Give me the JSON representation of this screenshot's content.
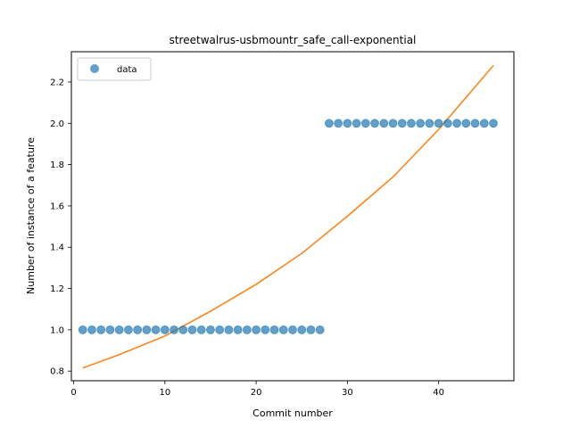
{
  "chart_data": {
    "type": "scatter",
    "title": "streetwalrus-usbmountr_safe_call-exponential",
    "xlabel": "Commit number",
    "ylabel": "Number of instance of a feature",
    "xlim": [
      -0.25,
      48.25
    ],
    "ylim": [
      0.7534,
      2.3466
    ],
    "xticks": [
      0,
      10,
      20,
      30,
      40
    ],
    "yticks": [
      0.8,
      1.0,
      1.2,
      1.4,
      1.6,
      1.8,
      2.0,
      2.2
    ],
    "ytick_labels": [
      "0.8",
      "1.0",
      "1.2",
      "1.4",
      "1.6",
      "1.8",
      "2.0",
      "2.2"
    ],
    "grid": false,
    "legend": {
      "placement": "top-left",
      "entries": [
        "data"
      ]
    },
    "series": [
      {
        "name": "data",
        "kind": "scatter",
        "color": "#1f77b4",
        "x": [
          1,
          2,
          3,
          4,
          5,
          6,
          7,
          8,
          9,
          10,
          11,
          12,
          13,
          14,
          15,
          16,
          17,
          18,
          19,
          20,
          21,
          22,
          23,
          24,
          25,
          26,
          27,
          28,
          29,
          30,
          31,
          32,
          33,
          34,
          35,
          36,
          37,
          38,
          39,
          40,
          41,
          42,
          43,
          44,
          45,
          46
        ],
        "y": [
          1,
          1,
          1,
          1,
          1,
          1,
          1,
          1,
          1,
          1,
          1,
          1,
          1,
          1,
          1,
          1,
          1,
          1,
          1,
          1,
          1,
          1,
          1,
          1,
          1,
          1,
          1,
          2,
          2,
          2,
          2,
          2,
          2,
          2,
          2,
          2,
          2,
          2,
          2,
          2,
          2,
          2,
          2,
          2,
          2,
          2
        ]
      },
      {
        "kind": "line",
        "color": "#ff7f0e",
        "x": [
          1,
          5,
          10,
          15,
          20,
          25,
          30,
          35,
          40,
          46
        ],
        "y": [
          0.815,
          0.88,
          0.97,
          1.09,
          1.22,
          1.37,
          1.55,
          1.74,
          1.97,
          2.28
        ]
      }
    ]
  }
}
